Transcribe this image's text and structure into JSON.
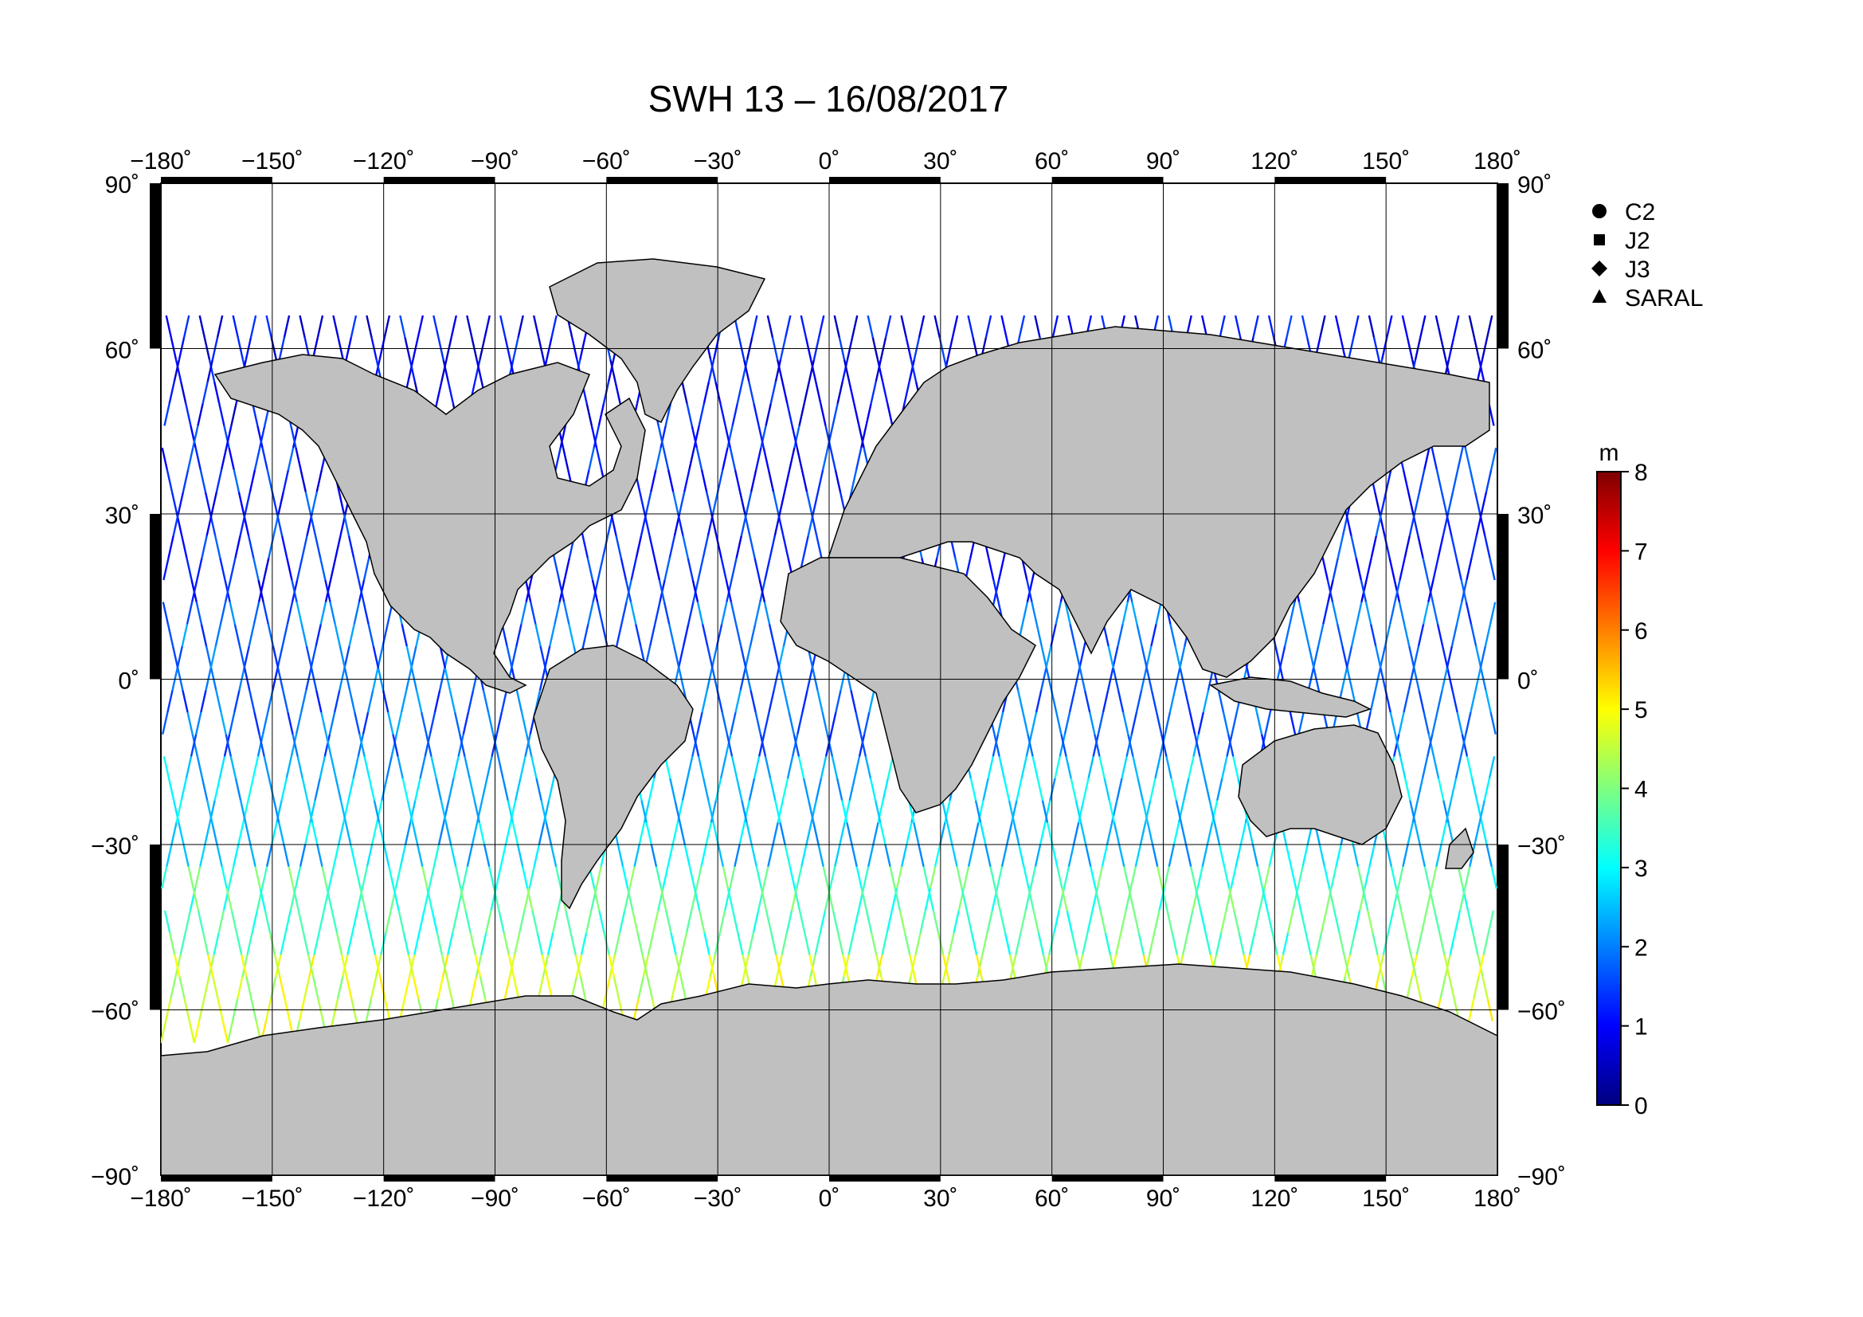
{
  "title": "SWH 13 – 16/08/2017",
  "map": {
    "lon_range": [
      -180,
      180
    ],
    "lat_range": [
      -90,
      90
    ],
    "lon_ticks": [
      "−180˚",
      "−150˚",
      "−120˚",
      "−90˚",
      "−60˚",
      "−30˚",
      "0˚",
      "30˚",
      "60˚",
      "90˚",
      "120˚",
      "150˚",
      "180˚"
    ],
    "lat_ticks_left": [
      "90˚",
      "60˚",
      "30˚",
      "0˚",
      "−30˚",
      "−60˚",
      "−90˚"
    ],
    "lat_ticks_right": [
      "90˚",
      "60˚",
      "30˚",
      "0˚",
      "−30˚",
      "−60˚",
      "−90˚"
    ],
    "land_color": "#c0c0c0",
    "ocean_color": "#ffffff",
    "grid": true
  },
  "legend": {
    "items": [
      {
        "label": "C2",
        "marker": "circle"
      },
      {
        "label": "J2",
        "marker": "square"
      },
      {
        "label": "J3",
        "marker": "diamond"
      },
      {
        "label": "SARAL",
        "marker": "triangle"
      }
    ]
  },
  "colorbar": {
    "unit": "m",
    "min": 0,
    "max": 8,
    "tick_labels": [
      "8",
      "7",
      "6",
      "5",
      "4",
      "3",
      "2",
      "1",
      "0"
    ],
    "colors": [
      "#00007f",
      "#0000ff",
      "#007fff",
      "#00ffff",
      "#7fff7f",
      "#ffff00",
      "#ff7f00",
      "#ff0000",
      "#7f0000"
    ]
  },
  "chart_data": {
    "type": "scatter",
    "variable": "SWH",
    "unit": "m",
    "regions": [
      {
        "lat_range": [
          45,
          70
        ],
        "swh": 1.0
      },
      {
        "lat_range": [
          15,
          45
        ],
        "swh": 1.3
      },
      {
        "lat_range": [
          -15,
          15
        ],
        "swh": 1.8
      },
      {
        "lat_range": [
          -35,
          -15
        ],
        "swh": 2.6
      },
      {
        "lat_range": [
          -50,
          -35
        ],
        "swh": 3.6
      },
      {
        "lat_range": [
          -66,
          -50
        ],
        "swh": 4.6
      }
    ]
  }
}
